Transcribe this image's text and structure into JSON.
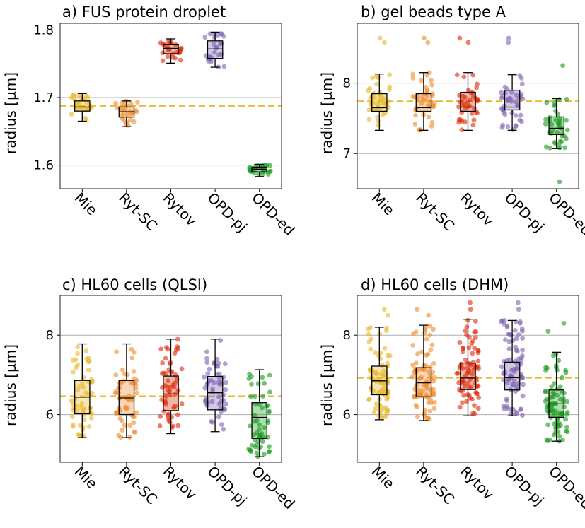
{
  "colors": {
    "Mie": "#e8b829",
    "Ryt-SC": "#ef8a2f",
    "Rytov": "#df2a0a",
    "OPD-pj": "#7d62b0",
    "OPD-ed": "#199a1c",
    "reference_line": "#e8b829",
    "grid": "#b0b0b0"
  },
  "chart_data": [
    {
      "type": "box",
      "title": "a) FUS protein droplet",
      "ylabel": "radius [µm]",
      "ylim": [
        1.565,
        1.81
      ],
      "yticks": [
        1.6,
        1.7,
        1.8
      ],
      "ytick_labels": [
        "1.6",
        "1.7",
        "1.8"
      ],
      "categories": [
        "Mie",
        "Ryt-SC",
        "Rytov",
        "OPD-pj",
        "OPD-ed"
      ],
      "reference": 1.688,
      "n_points": 25,
      "boxes": [
        {
          "min": 1.665,
          "q1": 1.68,
          "median": 1.686,
          "q3": 1.695,
          "max": 1.706,
          "outliers": []
        },
        {
          "min": 1.657,
          "q1": 1.671,
          "median": 1.679,
          "q3": 1.686,
          "max": 1.695,
          "outliers": []
        },
        {
          "min": 1.751,
          "q1": 1.765,
          "median": 1.773,
          "q3": 1.779,
          "max": 1.787,
          "outliers": []
        },
        {
          "min": 1.745,
          "q1": 1.758,
          "median": 1.772,
          "q3": 1.784,
          "max": 1.797,
          "outliers": []
        },
        {
          "min": 1.583,
          "q1": 1.59,
          "median": 1.594,
          "q3": 1.597,
          "max": 1.601,
          "outliers": []
        }
      ]
    },
    {
      "type": "box",
      "title": "b) gel beads type A",
      "ylabel": "radius [µm]",
      "ylim": [
        6.5,
        8.85
      ],
      "yticks": [
        7,
        8
      ],
      "ytick_labels": [
        "7",
        "8"
      ],
      "categories": [
        "Mie",
        "Ryt-SC",
        "Rytov",
        "OPD-pj",
        "OPD-ed"
      ],
      "reference": 7.74,
      "n_points": 40,
      "boxes": [
        {
          "min": 7.33,
          "q1": 7.6,
          "median": 7.65,
          "q3": 7.85,
          "max": 8.13,
          "outliers": [
            8.58,
            8.64
          ]
        },
        {
          "min": 7.33,
          "q1": 7.6,
          "median": 7.65,
          "q3": 7.85,
          "max": 8.15,
          "outliers": [
            8.58,
            8.64
          ]
        },
        {
          "min": 7.33,
          "q1": 7.6,
          "median": 7.66,
          "q3": 7.87,
          "max": 8.15,
          "outliers": [
            8.58,
            8.64
          ]
        },
        {
          "min": 7.33,
          "q1": 7.62,
          "median": 7.66,
          "q3": 7.9,
          "max": 8.12,
          "outliers": [
            8.58,
            8.64
          ]
        },
        {
          "min": 7.07,
          "q1": 7.27,
          "median": 7.36,
          "q3": 7.52,
          "max": 7.78,
          "outliers": [
            8.25,
            6.6
          ]
        }
      ]
    },
    {
      "type": "box",
      "title": "c) HL60 cells (QLSI)",
      "ylabel": "radius [µm]",
      "ylim": [
        4.8,
        9.0
      ],
      "yticks": [
        6,
        8
      ],
      "ytick_labels": [
        "6",
        "8"
      ],
      "categories": [
        "Mie",
        "Ryt-SC",
        "Rytov",
        "OPD-pj",
        "OPD-ed"
      ],
      "reference": 6.46,
      "n_points": 55,
      "boxes": [
        {
          "min": 5.42,
          "q1": 6.02,
          "median": 6.44,
          "q3": 6.86,
          "max": 7.78,
          "outliers": []
        },
        {
          "min": 5.42,
          "q1": 6.0,
          "median": 6.42,
          "q3": 6.86,
          "max": 7.78,
          "outliers": []
        },
        {
          "min": 5.52,
          "q1": 6.1,
          "median": 6.52,
          "q3": 6.97,
          "max": 7.9,
          "outliers": []
        },
        {
          "min": 5.57,
          "q1": 6.12,
          "median": 6.55,
          "q3": 6.96,
          "max": 7.9,
          "outliers": []
        },
        {
          "min": 4.94,
          "q1": 5.4,
          "median": 5.93,
          "q3": 6.3,
          "max": 7.13,
          "outliers": []
        }
      ]
    },
    {
      "type": "box",
      "title": "d) HL60 cells (DHM)",
      "ylabel": "radius [µm]",
      "ylim": [
        4.8,
        9.0
      ],
      "yticks": [
        6,
        8
      ],
      "ytick_labels": [
        "6",
        "8"
      ],
      "categories": [
        "Mie",
        "Ryt-SC",
        "Rytov",
        "OPD-pj",
        "OPD-ed"
      ],
      "reference": 6.93,
      "n_points": 80,
      "boxes": [
        {
          "min": 5.87,
          "q1": 6.5,
          "median": 6.85,
          "q3": 7.22,
          "max": 8.2,
          "outliers": [
            8.5,
            8.65
          ]
        },
        {
          "min": 5.85,
          "q1": 6.45,
          "median": 6.8,
          "q3": 7.18,
          "max": 8.25,
          "outliers": [
            8.5,
            8.65
          ]
        },
        {
          "min": 5.97,
          "q1": 6.63,
          "median": 6.92,
          "q3": 7.3,
          "max": 8.4,
          "outliers": [
            8.65,
            8.82
          ]
        },
        {
          "min": 5.97,
          "q1": 6.62,
          "median": 6.93,
          "q3": 7.32,
          "max": 8.37,
          "outliers": [
            8.65,
            8.82
          ]
        },
        {
          "min": 5.33,
          "q1": 5.93,
          "median": 6.27,
          "q3": 6.62,
          "max": 7.57,
          "outliers": [
            8.1,
            8.3
          ]
        }
      ]
    }
  ]
}
